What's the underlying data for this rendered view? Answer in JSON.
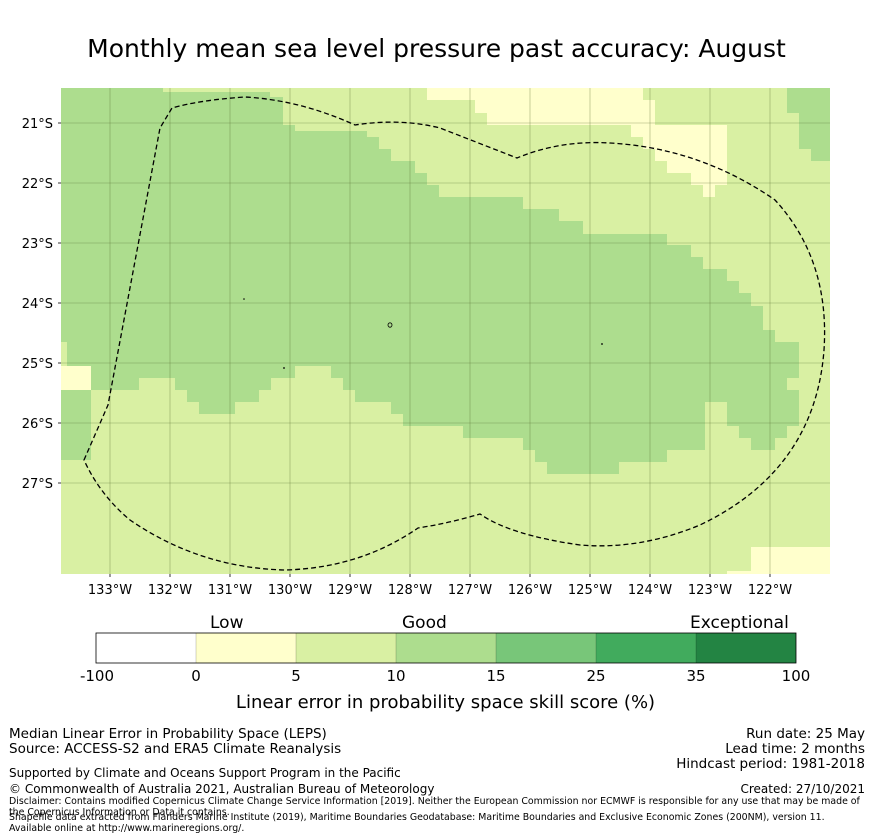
{
  "title": "Monthly mean sea level pressure past accuracy: August",
  "map": {
    "lat_labels": [
      "21°S",
      "22°S",
      "23°S",
      "24°S",
      "25°S",
      "26°S",
      "27°S"
    ],
    "lon_labels": [
      "133°W",
      "132°W",
      "131°W",
      "130°W",
      "129°W",
      "128°W",
      "127°W",
      "126°W",
      "125°W",
      "124°W",
      "123°W",
      "122°W"
    ],
    "lat_range": [
      -28.5,
      -20.4
    ],
    "lon_range": [
      -133.8,
      -121.0
    ]
  },
  "colorbar": {
    "category_labels": {
      "low": "Low",
      "good": "Good",
      "exceptional": "Exceptional"
    },
    "ticks": [
      "-100",
      "0",
      "5",
      "10",
      "15",
      "25",
      "35",
      "100"
    ],
    "colors": [
      "#ffffff",
      "#ffffcc",
      "#d9f0a3",
      "#addd8e",
      "#78c679",
      "#41ab5d",
      "#238443"
    ],
    "label": "Linear error in probability space skill score (%)"
  },
  "footer": {
    "line1": "Median Linear Error in Probability Space (LEPS)",
    "line2": "Source: ACCESS-S2 and ERA5 Climate Reanalysis",
    "support": "Supported by Climate and Oceans Support Program in the Pacific",
    "copyright": "© Commonwealth of Australia 2021, Australian Bureau of Meteorology",
    "disclaimer": "Disclaimer: Contains modified Copernicus Climate Change Service Information [2019]. Neither the European Commission nor ECMWF is responsible for any use that may be made of the Copernicus Information or Data it contains.",
    "shapefile": "Shapefile data extracted from Flanders Marine Institute (2019), Maritime Boundaries Geodatabase: Maritime Boundaries and Exclusive Economic Zones (200NM), version 11. Available online at http://www.marineregions.org/.",
    "run_date": "Run date: 25 May",
    "lead_time": "Lead time: 2 months",
    "hindcast": "Hindcast period: 1981-2018",
    "created": "Created: 27/10/2021"
  }
}
